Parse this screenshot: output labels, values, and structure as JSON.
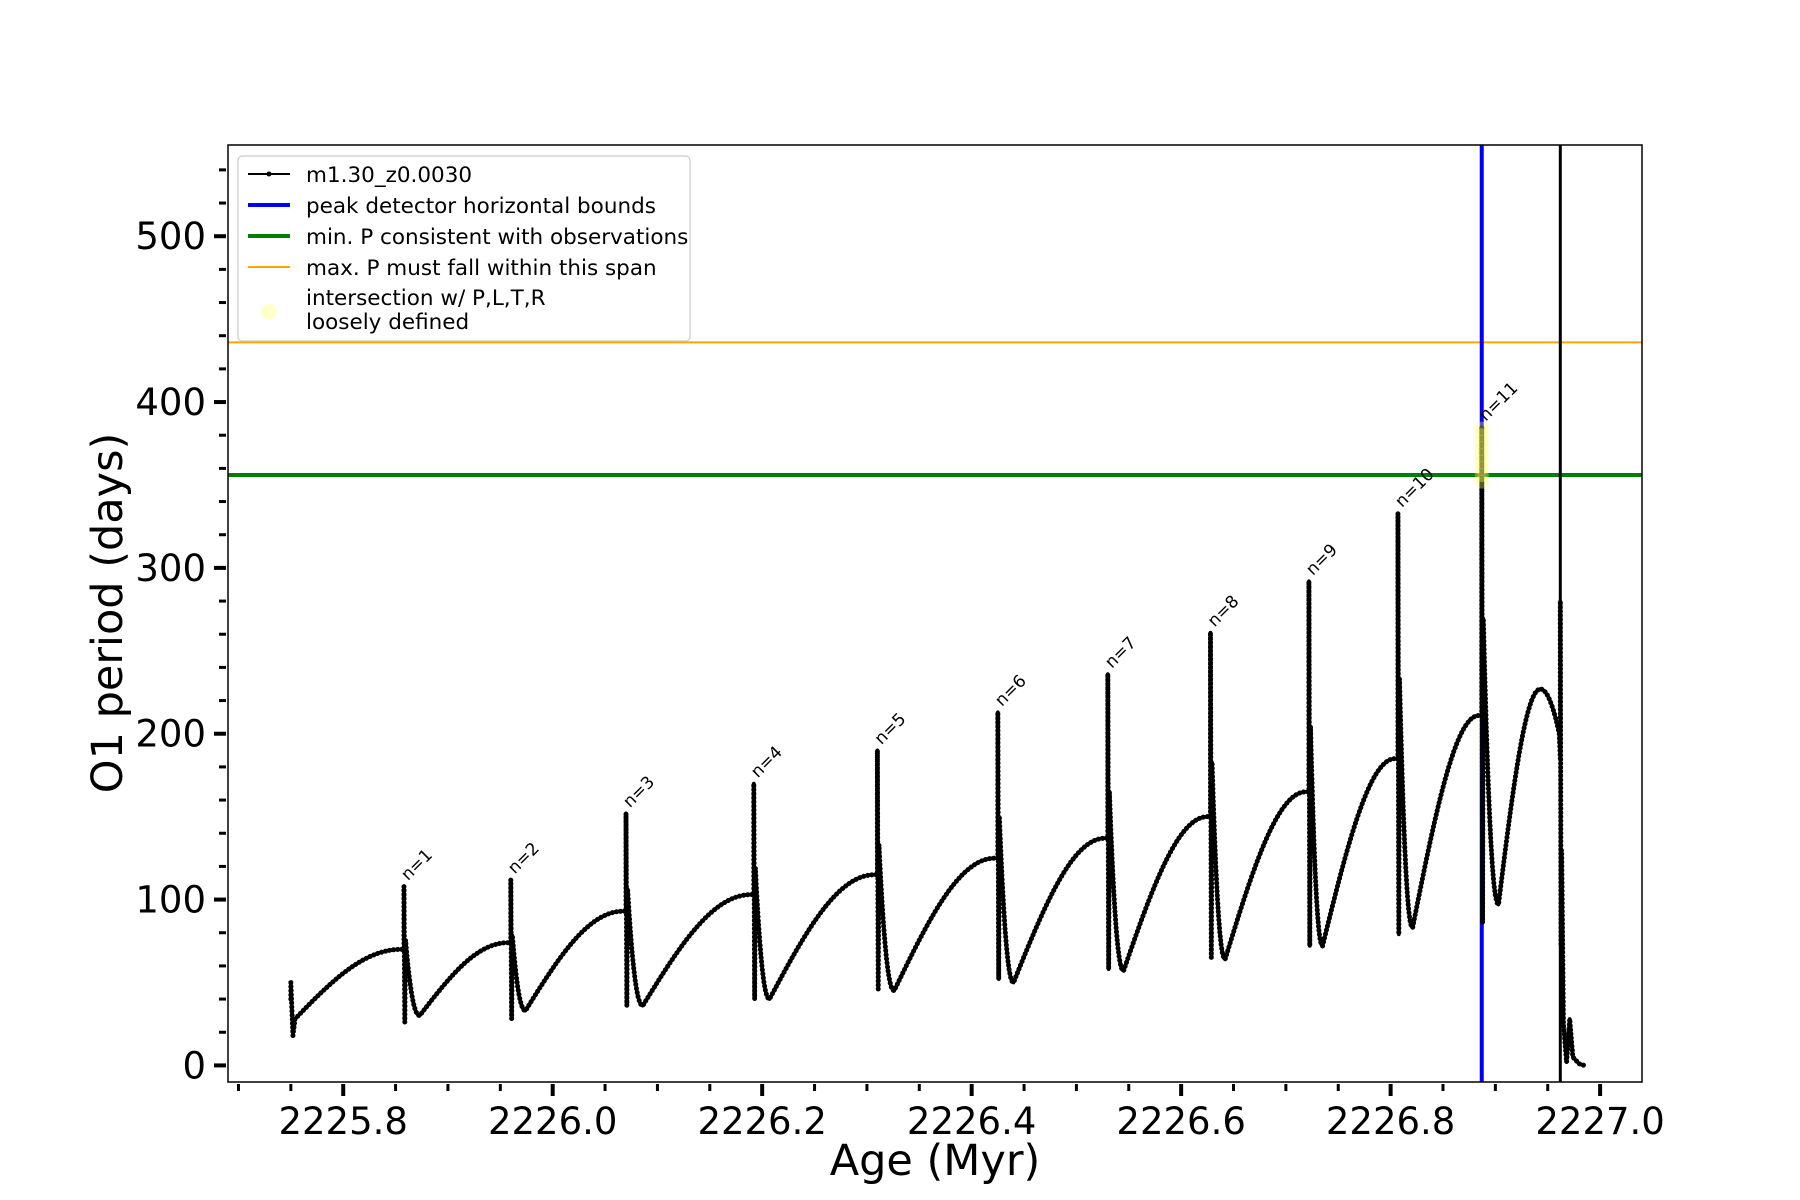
{
  "chart_data": {
    "type": "line",
    "title": "",
    "xlabel": "Age (Myr)",
    "ylabel": "O1 period (days)",
    "xlim": [
      2225.69,
      2227.04
    ],
    "ylim": [
      -10,
      555
    ],
    "x_ticks": [
      2225.8,
      2226.0,
      2226.2,
      2226.4,
      2226.6,
      2226.8,
      2227.0
    ],
    "x_tick_labels": [
      "2225.8",
      "2226.0",
      "2226.2",
      "2226.4",
      "2226.6",
      "2226.8",
      "2227.0"
    ],
    "y_ticks": [
      0,
      100,
      200,
      300,
      400,
      500
    ],
    "y_tick_labels": [
      "0",
      "100",
      "200",
      "300",
      "400",
      "500"
    ],
    "grid": false,
    "legend_position": "top-left",
    "legend": [
      {
        "label": "m1.30_z0.0030",
        "color": "#000000",
        "style": "line-dot"
      },
      {
        "label": "peak detector horizontal bounds",
        "color": "#0000ff",
        "style": "line-thick"
      },
      {
        "label": "min. P consistent with observations",
        "color": "#008000",
        "style": "line-thick"
      },
      {
        "label": "max. P must fall within this span",
        "color": "#ffa500",
        "style": "line-thin"
      },
      {
        "label_lines": [
          "intersection w/ P,L,T,R",
          "loosely defined"
        ],
        "color": "#ffff66",
        "style": "marker"
      }
    ],
    "horizontal_lines": [
      {
        "name": "max. P must fall within this span",
        "y": 436,
        "color": "#ffa500"
      },
      {
        "name": "min. P consistent with observations",
        "y": 356,
        "color": "#008000"
      }
    ],
    "vertical_lines": [
      {
        "name": "peak detector horizontal bounds",
        "x": 2226.887,
        "color": "#0000ff"
      },
      {
        "name": "boundary",
        "x": 2226.962,
        "color": "#000000"
      }
    ],
    "series": [
      {
        "name": "m1.30_z0.0030",
        "color": "#000000",
        "start": {
          "x": 2225.75,
          "y": 40,
          "min": 18,
          "max": 50,
          "rise_to": 28
        },
        "pulses": [
          {
            "label": "n=1",
            "x": 2225.858,
            "y_pre": 70,
            "y_peak": 108,
            "y_min": 26,
            "y_trough": 30,
            "x_trough": 2225.873
          },
          {
            "label": "n=2",
            "x": 2225.96,
            "y_pre": 74,
            "y_peak": 112,
            "y_min": 28,
            "y_trough": 33,
            "x_trough": 2225.974
          },
          {
            "label": "n=3",
            "x": 2226.07,
            "y_pre": 93,
            "y_peak": 152,
            "y_min": 36,
            "y_trough": 36,
            "x_trough": 2226.086
          },
          {
            "label": "n=4",
            "x": 2226.192,
            "y_pre": 103,
            "y_peak": 170,
            "y_min": 40,
            "y_trough": 40,
            "x_trough": 2226.207
          },
          {
            "label": "n=5",
            "x": 2226.31,
            "y_pre": 115,
            "y_peak": 190,
            "y_min": 46,
            "y_trough": 45,
            "x_trough": 2226.326
          },
          {
            "label": "n=6",
            "x": 2226.425,
            "y_pre": 125,
            "y_peak": 213,
            "y_min": 52,
            "y_trough": 50,
            "x_trough": 2226.44
          },
          {
            "label": "n=7",
            "x": 2226.53,
            "y_pre": 137,
            "y_peak": 236,
            "y_min": 58,
            "y_trough": 57,
            "x_trough": 2226.545
          },
          {
            "label": "n=8",
            "x": 2226.628,
            "y_pre": 150,
            "y_peak": 261,
            "y_min": 65,
            "y_trough": 64,
            "x_trough": 2226.642
          },
          {
            "label": "n=9",
            "x": 2226.722,
            "y_pre": 165,
            "y_peak": 292,
            "y_min": 72,
            "y_trough": 72,
            "x_trough": 2226.735
          },
          {
            "label": "n=10",
            "x": 2226.807,
            "y_pre": 185,
            "y_peak": 333,
            "y_min": 79,
            "y_trough": 83,
            "x_trough": 2226.821
          },
          {
            "label": "n=11",
            "x": 2226.887,
            "y_pre": 211,
            "y_peak": 385,
            "y_min": 86,
            "y_trough": 97,
            "x_trough": 2226.903
          }
        ],
        "final_hump": {
          "x_peak": 2226.943,
          "y_peak": 227
        },
        "final_spike": {
          "x": 2226.962,
          "y_peak": 280,
          "y_min": 72
        },
        "tail": [
          [
            2226.965,
            25
          ],
          [
            2226.968,
            2
          ],
          [
            2226.971,
            28
          ],
          [
            2226.974,
            5
          ],
          [
            2226.98,
            1
          ],
          [
            2226.985,
            0
          ]
        ]
      }
    ],
    "highlight": {
      "name": "intersection w/ P,L,T,R loosely defined",
      "x": 2226.887,
      "y_range": [
        352,
        385
      ],
      "color": "#ffff66"
    }
  }
}
